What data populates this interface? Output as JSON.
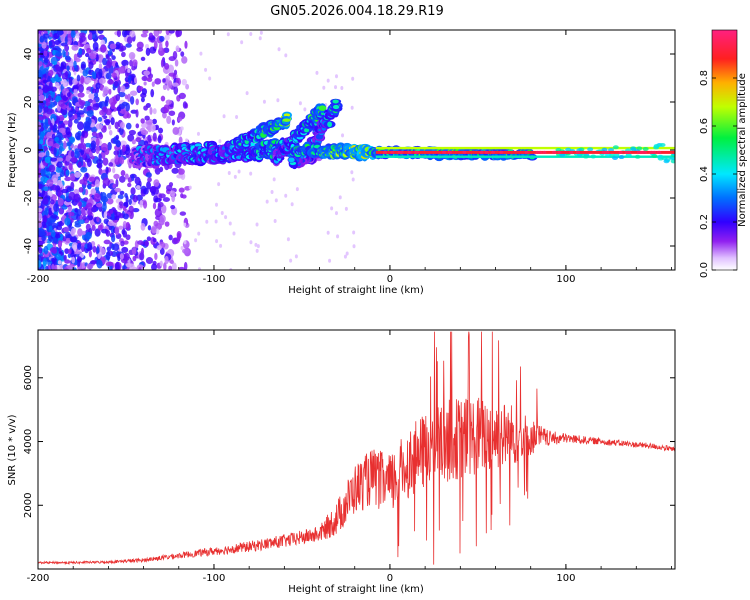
{
  "title": "GN05.2026.004.18.29.R19",
  "chart_data": [
    {
      "type": "heatmap",
      "name": "spectrogram",
      "xlabel": "Height of straight line (km)",
      "ylabel": "Frequency (Hz)",
      "xlim": [
        -200,
        162
      ],
      "ylim": [
        -50,
        50
      ],
      "xticks": [
        "-200",
        "-100",
        "0",
        "100"
      ],
      "yticks": [
        "-40",
        "-20",
        "0",
        "20",
        "40"
      ],
      "colorbar": {
        "label": "Normalized spectral amplitude",
        "range": [
          0,
          1
        ],
        "ticks": [
          "0.0",
          "0.2",
          "0.4",
          "0.6",
          "0.8"
        ],
        "stops": [
          "#ffffff",
          "#d8b4f8",
          "#8a2be2",
          "#3a00e0",
          "#0060ff",
          "#00e0ff",
          "#00e060",
          "#c8ff00",
          "#ffb000",
          "#ff2020",
          "#ff2080"
        ]
      },
      "features": [
        {
          "label": "noise region",
          "x": [
            -200,
            -125
          ],
          "freq": [
            -50,
            50
          ],
          "amplitude": 0.2
        },
        {
          "label": "main echo trace",
          "x": [
            -145,
            162
          ],
          "freq_center": [
            -3,
            0
          ],
          "amplitude_peak": 0.95
        },
        {
          "label": "streak 1",
          "x": [
            -100,
            -55
          ],
          "freq": [
            -2,
            15
          ]
        },
        {
          "label": "streak 2",
          "x": [
            -65,
            -35
          ],
          "freq": [
            -4,
            18
          ]
        },
        {
          "label": "streak 3",
          "x": [
            -48,
            -30
          ],
          "freq": [
            -3,
            20
          ]
        }
      ]
    },
    {
      "type": "line",
      "name": "snr",
      "xlabel": "Height of straight line (km)",
      "ylabel": "SNR (10 * v/v)",
      "xlim": [
        -200,
        162
      ],
      "ylim": [
        0,
        7500
      ],
      "xticks": [
        "-200",
        "-100",
        "0",
        "100"
      ],
      "yticks": [
        "2000",
        "4000",
        "6000"
      ],
      "color": "#e83030",
      "series": [
        {
          "name": "SNR",
          "x": [
            -200,
            -180,
            -160,
            -140,
            -120,
            -100,
            -80,
            -60,
            -40,
            -30,
            -20,
            -10,
            0,
            10,
            20,
            30,
            40,
            50,
            60,
            70,
            80,
            90,
            100,
            110,
            120,
            130,
            140,
            150,
            162
          ],
          "values": [
            200,
            200,
            220,
            280,
            420,
            560,
            700,
            880,
            1100,
            1600,
            2500,
            2900,
            2600,
            3300,
            3700,
            4000,
            4100,
            4200,
            4200,
            4200,
            4150,
            4100,
            4100,
            4050,
            4000,
            3950,
            3900,
            3850,
            3750
          ],
          "spread": [
            60,
            70,
            80,
            120,
            180,
            260,
            340,
            420,
            500,
            1100,
            1600,
            1800,
            2000,
            2200,
            2400,
            2600,
            2600,
            2500,
            2300,
            2000,
            1200,
            500,
            300,
            250,
            200,
            200,
            180,
            180,
            170
          ]
        }
      ]
    }
  ]
}
